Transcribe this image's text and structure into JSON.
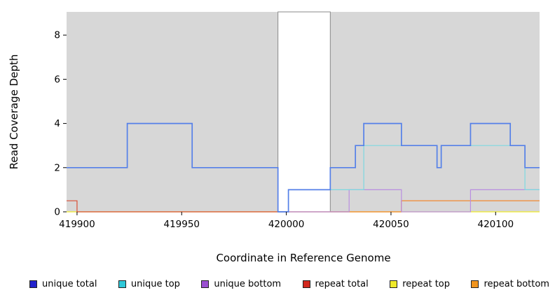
{
  "chart_data": {
    "type": "line",
    "step_mode": "post",
    "title": "",
    "xlabel": "Coordinate in Reference Genome",
    "ylabel": "Read Coverage Depth",
    "xlim": [
      419895,
      420121
    ],
    "ylim": [
      0,
      9.05
    ],
    "x_ticks": [
      419900,
      419950,
      420000,
      420050,
      420100
    ],
    "y_ticks": [
      0,
      2,
      4,
      6,
      8
    ],
    "grid": false,
    "panel_bg": "#d7d7d7",
    "highlight_band": {
      "x0": 419996,
      "x1": 420021,
      "fill": "#ffffff",
      "border": "#8a8a8a"
    },
    "series": [
      {
        "name": "repeat top",
        "line_color": "#efe92a",
        "width": 1.2,
        "points": [
          [
            419895,
            0
          ]
        ]
      },
      {
        "name": "repeat total",
        "line_color": "#d94f35",
        "width": 1.2,
        "points": [
          [
            419895,
            0.5
          ],
          [
            419900,
            0
          ],
          [
            420055,
            0.5
          ]
        ]
      },
      {
        "name": "repeat bottom",
        "line_color": "#f49a3c",
        "width": 1.2,
        "points": [
          [
            420021,
            0
          ],
          [
            420055,
            0.5
          ]
        ]
      },
      {
        "name": "unique bottom",
        "line_color": "#b98ee0",
        "width": 1.2,
        "points": [
          [
            419996,
            0
          ],
          [
            420030,
            1
          ],
          [
            420055,
            0
          ],
          [
            420088,
            1
          ]
        ]
      },
      {
        "name": "unique top",
        "line_color": "#7dd8e0",
        "width": 1.2,
        "points": [
          [
            419996,
            0
          ],
          [
            420001,
            1
          ],
          [
            420037,
            3
          ],
          [
            420072,
            2
          ],
          [
            420074,
            3
          ],
          [
            420114,
            1
          ]
        ]
      },
      {
        "name": "unique total",
        "line_color": "#5580e8",
        "width": 1.7,
        "points": [
          [
            419895,
            2
          ],
          [
            419924,
            4
          ],
          [
            419955,
            2
          ],
          [
            419996,
            0
          ],
          [
            420001,
            1
          ],
          [
            420021,
            2
          ],
          [
            420033,
            3
          ],
          [
            420037,
            4
          ],
          [
            420055,
            3
          ],
          [
            420072,
            2
          ],
          [
            420074,
            3
          ],
          [
            420088,
            4
          ],
          [
            420107,
            3
          ],
          [
            420114,
            2
          ]
        ]
      }
    ],
    "legend_position": "bottom",
    "legend": [
      {
        "label": "unique total",
        "color": "#2222cc"
      },
      {
        "label": "unique top",
        "color": "#2fc8d8"
      },
      {
        "label": "unique bottom",
        "color": "#9a4fd0"
      },
      {
        "label": "repeat total",
        "color": "#d2291e"
      },
      {
        "label": "repeat top",
        "color": "#efe92a"
      },
      {
        "label": "repeat bottom",
        "color": "#f0941e"
      }
    ]
  }
}
